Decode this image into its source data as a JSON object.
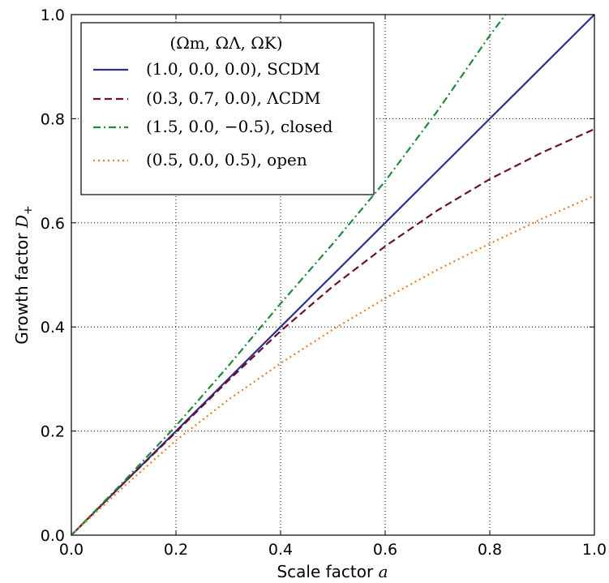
{
  "chart_data": {
    "type": "line",
    "xlabel": "Scale factor",
    "xlabel_var": "a",
    "ylabel": "Growth factor",
    "ylabel_var": "D",
    "ylabel_sub": "+",
    "xlim": [
      0.0,
      1.0
    ],
    "ylim": [
      0.0,
      1.0
    ],
    "xticks": [
      "0.0",
      "0.2",
      "0.4",
      "0.6",
      "0.8",
      "1.0"
    ],
    "yticks": [
      "0.0",
      "0.2",
      "0.4",
      "0.6",
      "0.8",
      "1.0"
    ],
    "grid": true,
    "legend_position": "top-left",
    "legend_title": "(Ωm, ΩΛ, ΩK)",
    "series": [
      {
        "name": "(1.0, 0.0, 0.0), SCDM",
        "color": "#2b2f8f",
        "style": "solid",
        "x": [
          0.0,
          0.1,
          0.2,
          0.3,
          0.4,
          0.5,
          0.6,
          0.7,
          0.8,
          0.9,
          1.0
        ],
        "y": [
          0.0,
          0.1,
          0.2,
          0.3,
          0.4,
          0.5,
          0.6,
          0.7,
          0.8,
          0.9,
          1.0
        ]
      },
      {
        "name": "(0.3, 0.7, 0.0), ΛCDM",
        "color": "#6b0f2c",
        "style": "dashed",
        "x": [
          0.0,
          0.1,
          0.2,
          0.3,
          0.4,
          0.5,
          0.6,
          0.7,
          0.8,
          0.9,
          1.0
        ],
        "y": [
          0.0,
          0.1,
          0.198,
          0.297,
          0.392,
          0.478,
          0.555,
          0.624,
          0.684,
          0.735,
          0.78
        ]
      },
      {
        "name": "(1.5, 0.0, −0.5), closed",
        "color": "#1e8a3b",
        "style": "dashdot",
        "x": [
          0.0,
          0.1,
          0.2,
          0.3,
          0.4,
          0.5,
          0.6,
          0.7,
          0.8,
          0.83
        ],
        "y": [
          0.0,
          0.103,
          0.21,
          0.325,
          0.445,
          0.56,
          0.68,
          0.815,
          0.96,
          1.0
        ]
      },
      {
        "name": "(0.5, 0.0, 0.5), open",
        "color": "#f07a2a",
        "style": "dotted",
        "x": [
          0.0,
          0.1,
          0.2,
          0.3,
          0.4,
          0.5,
          0.6,
          0.7,
          0.8,
          0.9,
          1.0
        ],
        "y": [
          0.0,
          0.093,
          0.182,
          0.26,
          0.33,
          0.395,
          0.455,
          0.51,
          0.56,
          0.608,
          0.652
        ]
      }
    ]
  }
}
